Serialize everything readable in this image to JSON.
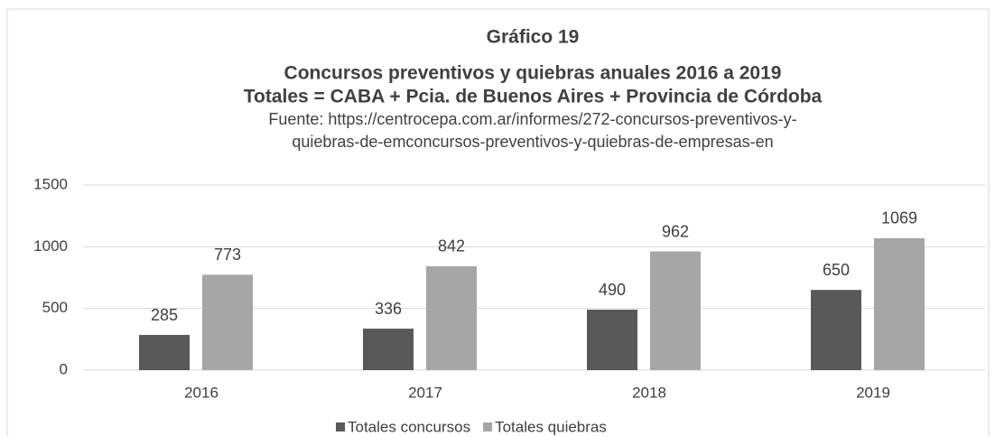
{
  "chart_data": {
    "type": "bar",
    "title": [
      "Gráfico 19",
      "Concursos preventivos y quiebras anuales 2016 a 2019",
      "Totales = CABA + Pcia. de Buenos Aires + Provincia de Córdoba"
    ],
    "subtitle": [
      "Fuente: https://centrocepa.com.ar/informes/272-concursos-preventivos-y-",
      "quiebras-de-emconcursos-preventivos-y-quiebras-de-empresas-en"
    ],
    "categories": [
      "2016",
      "2017",
      "2018",
      "2019"
    ],
    "series": [
      {
        "name": "Totales concursos",
        "color": "#595959",
        "values": [
          285,
          336,
          490,
          650
        ]
      },
      {
        "name": "Totales quiebras",
        "color": "#a6a6a6",
        "values": [
          773,
          842,
          962,
          1069
        ]
      }
    ],
    "ylim": [
      0,
      1500
    ],
    "yticks": [
      0,
      500,
      1000,
      1500
    ],
    "grid": true,
    "legend": "bottom"
  }
}
